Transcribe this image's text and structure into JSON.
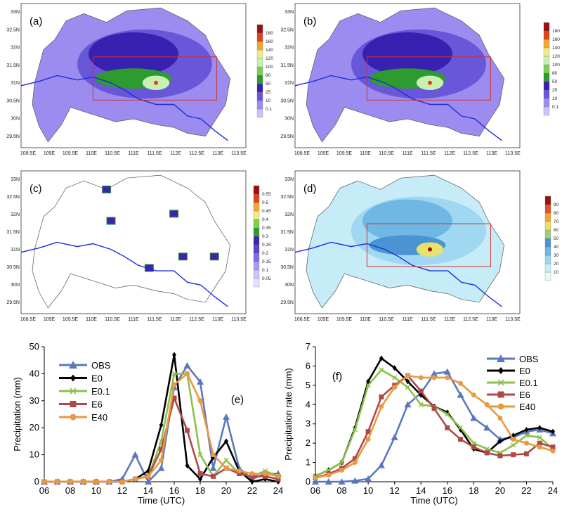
{
  "maps": [
    {
      "label": "(a)",
      "box": true,
      "colorbar": [
        "0.1",
        "10",
        "25",
        "50",
        "80",
        "100",
        "120",
        "140",
        "160",
        "180"
      ],
      "colors": [
        "#c9c6ff",
        "#9c8cf0",
        "#6957d9",
        "#3820b0",
        "#2e9b2e",
        "#7ad24b",
        "#c8f0b0",
        "#f3e98c",
        "#f0a830",
        "#e0421b",
        "#9b1010"
      ]
    },
    {
      "label": "(b)",
      "box": true,
      "colorbar": [
        "0.1",
        "10",
        "25",
        "50",
        "80",
        "100",
        "120",
        "140",
        "160",
        "180"
      ],
      "colors": [
        "#c9c6ff",
        "#9c8cf0",
        "#6957d9",
        "#3820b0",
        "#2e9b2e",
        "#7ad24b",
        "#c8f0b0",
        "#f3e98c",
        "#f0a830",
        "#e0421b",
        "#9b1010"
      ]
    },
    {
      "label": "(c)",
      "box": false,
      "colorbar": [
        "0.05",
        "0.1",
        "0.15",
        "0.2",
        "0.25",
        "0.3",
        "0.35",
        "0.4",
        "0.45",
        "0.5",
        "0.55"
      ],
      "colors": [
        "#e3e1ff",
        "#c9c6ff",
        "#a59af2",
        "#7f6ee3",
        "#5a44cc",
        "#3c24ad",
        "#2e9b2e",
        "#7ad24b",
        "#f3e98c",
        "#f0a830",
        "#e0421b",
        "#9b1010"
      ]
    },
    {
      "label": "(d)",
      "box": true,
      "colorbar": [
        "10",
        "20",
        "30",
        "40",
        "50",
        "60",
        "70",
        "80",
        "90"
      ],
      "colors": [
        "#eaf8fd",
        "#c6ecf8",
        "#9fd8f0",
        "#6fb8e4",
        "#4a94d4",
        "#9fd06b",
        "#e9e26a",
        "#f2a233",
        "#e05327",
        "#9b1010"
      ]
    }
  ],
  "map_axes": {
    "lon_ticks": [
      "108.5E",
      "109E",
      "109.5E",
      "110E",
      "110.5E",
      "111E",
      "111.5E",
      "112E",
      "112.5E",
      "113E",
      "113.5E"
    ],
    "lat_ticks": [
      "33N",
      "32.5N",
      "32N",
      "31.5N",
      "31N",
      "30.5N",
      "30N",
      "29.5N"
    ]
  },
  "chart_data": [
    {
      "type": "line",
      "panel_label": "(e)",
      "xlabel": "Time (UTC)",
      "ylabel": "Precipitation (mm)",
      "x": [
        6,
        7,
        8,
        9,
        10,
        11,
        12,
        13,
        14,
        15,
        16,
        17,
        18,
        19,
        20,
        21,
        22,
        23,
        24
      ],
      "xticks": [
        "06",
        "08",
        "10",
        "12",
        "14",
        "16",
        "18",
        "20",
        "22",
        "24"
      ],
      "ylim": [
        0,
        50
      ],
      "yticks": [
        "0",
        "10",
        "20",
        "30",
        "40",
        "50"
      ],
      "grid": false,
      "legend": "top-left",
      "series": [
        {
          "name": "OBS",
          "color": "#5b78bf",
          "marker": "triangle",
          "values": [
            0,
            0,
            0,
            0,
            0,
            0,
            1,
            10,
            0,
            5,
            35,
            43,
            37,
            5,
            24,
            5,
            1,
            3,
            3
          ]
        },
        {
          "name": "E0",
          "color": "#000000",
          "marker": "diamond",
          "values": [
            0,
            0,
            0,
            0,
            0,
            0,
            0,
            1,
            4,
            21,
            47,
            6,
            1,
            9,
            15,
            4,
            0,
            1,
            0
          ]
        },
        {
          "name": "E0.1",
          "color": "#8cc04b",
          "marker": "x",
          "values": [
            0,
            0,
            0,
            0,
            0,
            0,
            0,
            1,
            2,
            15,
            40,
            40,
            10,
            2,
            8,
            3,
            2,
            4,
            2
          ]
        },
        {
          "name": "E6",
          "color": "#b04848",
          "marker": "square",
          "values": [
            0,
            0,
            0,
            0,
            0,
            0,
            0,
            1,
            2,
            12,
            31,
            19,
            3,
            2,
            5,
            3,
            2,
            2,
            1
          ]
        },
        {
          "name": "E40",
          "color": "#e89a40",
          "marker": "circle",
          "values": [
            0,
            0,
            0,
            0,
            0,
            0,
            0,
            1,
            2,
            8,
            36,
            40,
            30,
            10,
            5,
            4,
            3,
            3,
            2
          ]
        }
      ]
    },
    {
      "type": "line",
      "panel_label": "(f)",
      "xlabel": "Time (UTC)",
      "ylabel": "Precipitation rate (mm)",
      "x": [
        6,
        7,
        8,
        9,
        10,
        11,
        12,
        13,
        14,
        15,
        16,
        17,
        18,
        19,
        20,
        21,
        22,
        23,
        24
      ],
      "xticks": [
        "06",
        "08",
        "10",
        "12",
        "14",
        "16",
        "18",
        "20",
        "22",
        "24"
      ],
      "ylim": [
        0,
        7
      ],
      "yticks": [
        "0",
        "1",
        "2",
        "3",
        "4",
        "5",
        "6",
        "7"
      ],
      "grid": false,
      "legend": "top-right",
      "series": [
        {
          "name": "OBS",
          "color": "#5b78bf",
          "marker": "triangle",
          "values": [
            0,
            0,
            0,
            0.05,
            0.15,
            0.85,
            2.3,
            4.0,
            4.6,
            5.6,
            5.7,
            4.5,
            3.3,
            2.8,
            2.2,
            2.3,
            2.6,
            2.7,
            2.5
          ]
        },
        {
          "name": "E0",
          "color": "#000000",
          "marker": "diamond",
          "values": [
            0.3,
            0.6,
            1.0,
            2.8,
            5.2,
            6.4,
            5.9,
            5.2,
            4.5,
            3.9,
            3.6,
            2.7,
            1.7,
            1.5,
            2.1,
            2.4,
            2.7,
            2.8,
            2.6
          ]
        },
        {
          "name": "E0.1",
          "color": "#8cc04b",
          "marker": "x",
          "values": [
            0.3,
            0.6,
            1.0,
            2.7,
            5.0,
            5.8,
            5.4,
            4.9,
            4.0,
            3.9,
            3.5,
            2.8,
            2.0,
            1.7,
            1.5,
            1.9,
            2.4,
            2.3,
            1.7
          ]
        },
        {
          "name": "E6",
          "color": "#b04848",
          "marker": "square",
          "values": [
            0.2,
            0.4,
            0.7,
            1.2,
            2.6,
            4.4,
            5.0,
            5.5,
            4.7,
            3.8,
            2.8,
            2.2,
            1.8,
            1.5,
            1.35,
            1.4,
            1.45,
            2.0,
            1.8
          ]
        },
        {
          "name": "E40",
          "color": "#e89a40",
          "marker": "circle",
          "values": [
            0.2,
            0.35,
            0.6,
            1.0,
            2.2,
            3.9,
            4.9,
            5.5,
            5.4,
            5.4,
            5.4,
            5.1,
            4.5,
            4.0,
            3.3,
            2.2,
            2.0,
            1.8,
            1.6
          ]
        }
      ]
    }
  ]
}
